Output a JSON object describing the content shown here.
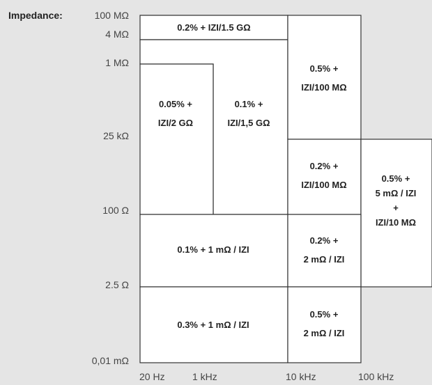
{
  "y_axis": {
    "title": "Impedance:",
    "ticks": [
      "100 MΩ",
      "4 MΩ",
      "1 MΩ",
      "25 kΩ",
      "100 Ω",
      "2.5 Ω",
      "0,01 mΩ"
    ]
  },
  "x_axis": {
    "ticks": [
      "20 Hz",
      "1 kHz",
      "10 kHz",
      "100 kHz"
    ]
  },
  "regions": [
    {
      "id": "r1",
      "lines": [
        "0.2% + IZI/1.5 GΩ"
      ]
    },
    {
      "id": "r2",
      "lines": [
        "0.05% +",
        "IZI/2 GΩ"
      ]
    },
    {
      "id": "r3",
      "lines": [
        "0.1% +",
        "IZI/1,5 GΩ"
      ]
    },
    {
      "id": "r4",
      "lines": [
        "0.5% +",
        "IZI/100 MΩ"
      ]
    },
    {
      "id": "r5",
      "lines": [
        "0.2% +",
        "IZI/100 MΩ"
      ]
    },
    {
      "id": "r6",
      "lines": [
        "0.5% +",
        "5 mΩ / IZI",
        "+",
        "IZI/10 MΩ"
      ]
    },
    {
      "id": "r7",
      "lines": [
        "0.1% + 1 mΩ / IZI"
      ]
    },
    {
      "id": "r8",
      "lines": [
        "0.2% +",
        "2 mΩ / IZI"
      ]
    },
    {
      "id": "r9",
      "lines": [
        "0.3% + 1 mΩ / IZI"
      ]
    },
    {
      "id": "r10",
      "lines": [
        "0.5% +",
        "2 mΩ / IZI"
      ]
    }
  ],
  "colors": {
    "background": "#e5e5e5",
    "cell_fill": "#ffffff",
    "border": "#333333"
  }
}
